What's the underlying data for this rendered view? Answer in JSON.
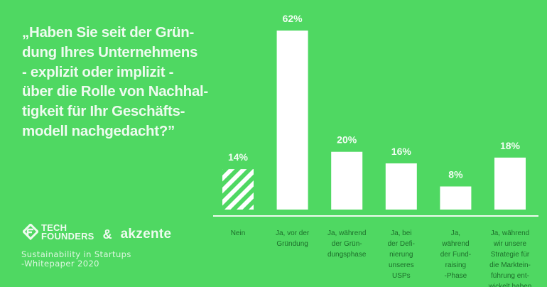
{
  "title_lines": [
    "„Haben Sie seit der Grün-",
    "dung Ihres Unternehmens",
    "- explizit oder implizit -",
    "über die Rolle von Nachhal-",
    "tigkeit für Ihr Geschäfts-",
    "modell nachgedacht?”"
  ],
  "logos": {
    "tech_founders": [
      "TECH",
      "FOUNDERS"
    ],
    "ampersand": "&",
    "akzente": "akzente"
  },
  "subtitle_lines": [
    "Sustainability in Startups",
    "-Whitepaper 2020"
  ],
  "colors": {
    "background": "#4fd862",
    "bars": "#ffffff",
    "category_text": "#1d6f2b"
  },
  "chart_data": {
    "type": "bar",
    "categories": [
      [
        "Nein"
      ],
      [
        "Ja, vor der",
        "Gründung"
      ],
      [
        "Ja, während",
        "der Grün-",
        "dungsphase"
      ],
      [
        "Ja, bei",
        "der Defi-",
        "nierung",
        "unseres",
        "USPs"
      ],
      [
        "Ja,",
        "während",
        "der Fund-",
        "raising",
        "-Phase"
      ],
      [
        "Ja, während",
        "wir unsere",
        "Strategie für",
        "die Marktein-",
        "führung ent-",
        "wickelt haben"
      ]
    ],
    "values": [
      14,
      62,
      20,
      16,
      8,
      18
    ],
    "value_labels": [
      "14%",
      "62%",
      "20%",
      "16%",
      "8%",
      "18%"
    ],
    "patterns": [
      "hatched",
      "solid",
      "solid",
      "solid",
      "solid",
      "solid"
    ],
    "unit": "%",
    "ylim": [
      0,
      62
    ],
    "grid": false,
    "legend": "none"
  }
}
